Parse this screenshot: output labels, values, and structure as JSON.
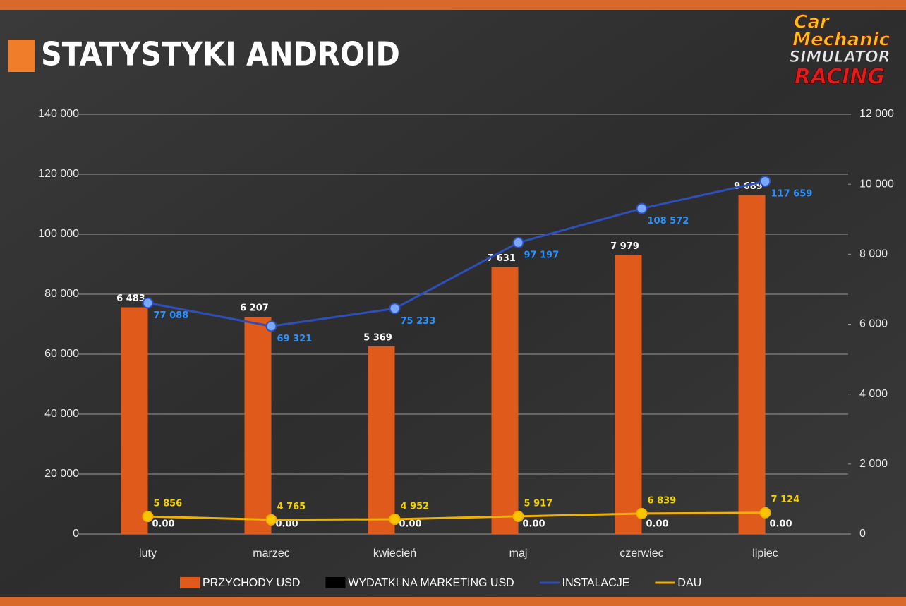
{
  "chart_data": {
    "type": "combo",
    "title": "STATYSTYKI ANDROID",
    "logo": [
      "Car",
      "Mechanic",
      "SIMULATOR",
      "RACING"
    ],
    "categories": [
      "luty",
      "marzec",
      "kwiecień",
      "maj",
      "czerwiec",
      "lipiec"
    ],
    "series": [
      {
        "name": "PRZYCHODY USD",
        "type": "bar",
        "axis": "y2",
        "color": "#e05a1c",
        "values": [
          6483,
          6207,
          5369,
          7631,
          7979,
          9689
        ],
        "value_labels": [
          "6 483",
          "6 207",
          "5 369",
          "7 631",
          "7 979",
          "9 689"
        ]
      },
      {
        "name": "WYDATKI NA MARKETING USD",
        "type": "bar",
        "axis": "y2",
        "color": "#000000",
        "values": [
          0,
          0,
          0,
          0,
          0,
          0
        ],
        "value_labels": [
          "0.00",
          "0.00",
          "0.00",
          "0.00",
          "0.00",
          "0.00"
        ]
      },
      {
        "name": "INSTALACJE",
        "type": "line",
        "color": "#2f4fb8",
        "values": [
          77088,
          69321,
          75233,
          97197,
          108572,
          117659
        ],
        "value_labels": [
          "77 088",
          "69 321",
          "75 233",
          "97 197",
          "108 572",
          "117 659"
        ]
      },
      {
        "name": "DAU",
        "type": "line",
        "color": "#f2b000",
        "values": [
          5856,
          4765,
          4952,
          5917,
          6839,
          7124
        ],
        "value_labels": [
          "5 856",
          "4 765",
          "4 952",
          "5 917",
          "6 839",
          "7 124"
        ]
      }
    ],
    "ylim": [
      0,
      140000
    ],
    "yticks": [
      0,
      {
        "value": 20000,
        "label": "20 000"
      },
      {
        "value": 40000,
        "label": "40 000"
      },
      {
        "value": 60000,
        "label": "60 000"
      },
      {
        "value": 80000,
        "label": "80 000"
      },
      {
        "value": 100000,
        "label": "100 000"
      },
      {
        "value": 120000,
        "label": "120 000"
      },
      {
        "value": 140000,
        "label": "140 000"
      }
    ],
    "y2lim": [
      0,
      12000
    ],
    "y2ticks": [
      0,
      {
        "value": 2000,
        "label": "2 000"
      },
      {
        "value": 4000,
        "label": "4 000"
      },
      {
        "value": 6000,
        "label": "6 000"
      },
      {
        "value": 8000,
        "label": "8 000"
      },
      {
        "value": 10000,
        "label": "10 000"
      },
      {
        "value": 12000,
        "label": "12 000"
      }
    ],
    "grid": true,
    "legend": "bottom"
  }
}
